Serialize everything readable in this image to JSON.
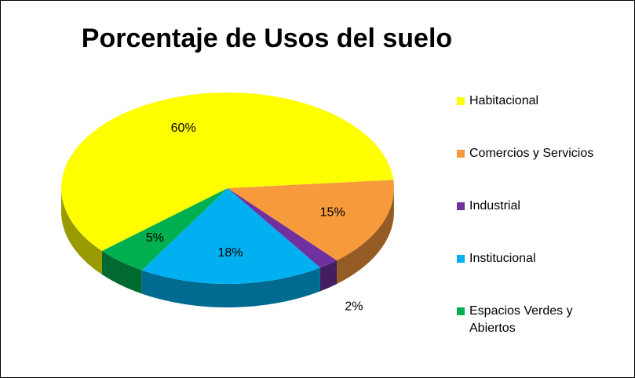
{
  "chart_data": {
    "type": "pie",
    "title": "Porcentaje de Usos del suelo",
    "categories": [
      "Habitacional",
      "Comercios y Servicios",
      "Industrial",
      "Institucional",
      "Espacios Verdes y Abiertos"
    ],
    "values": [
      60,
      15,
      2,
      18,
      5
    ],
    "value_labels": [
      "60%",
      "15%",
      "2%",
      "18%",
      "5%"
    ],
    "colors": [
      "#ffff00",
      "#f79a3c",
      "#7030a0",
      "#00b0f0",
      "#00b050"
    ],
    "legend": "right"
  }
}
